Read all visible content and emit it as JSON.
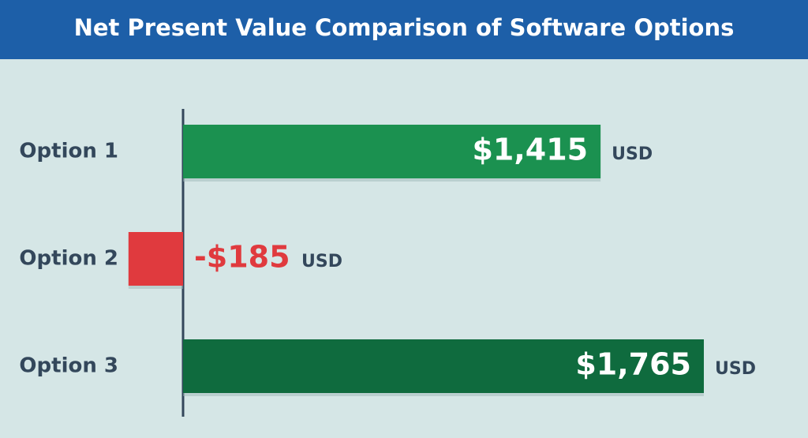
{
  "chart_data": {
    "type": "bar",
    "orientation": "horizontal",
    "title": "Net Present Value Comparison of Software Options",
    "categories": [
      "Option 1",
      "Option 2",
      "Option 3"
    ],
    "values": [
      1415,
      -185,
      1765
    ],
    "value_labels": [
      "$1,415",
      "-$185",
      "$1,765"
    ],
    "unit": "USD",
    "colors": [
      "#1b9150",
      "#e03a3e",
      "#0f6b3e"
    ]
  }
}
